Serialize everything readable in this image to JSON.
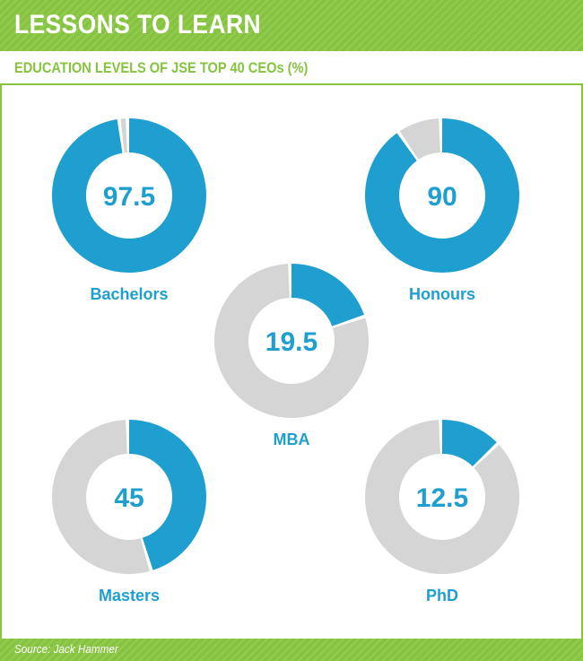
{
  "header": {
    "title": "LESSONS TO LEARN"
  },
  "subtitle": "EDUCATION LEVELS OF JSE TOP 40 CEOs (%)",
  "source": "Source: Jack Hammer",
  "colors": {
    "accent": "#86c440",
    "value": "#1f9fcf",
    "remainder": "#d5d5d5"
  },
  "chart_data": {
    "type": "pie",
    "title": "EDUCATION LEVELS OF JSE TOP 40 CEOs (%)",
    "unit": "%",
    "total": 100,
    "categories": [
      "Bachelors",
      "Honours",
      "MBA",
      "Masters",
      "PhD"
    ],
    "values": [
      97.5,
      90,
      19.5,
      45,
      12.5
    ],
    "value_labels": [
      "97.5",
      "90",
      "19.5",
      "45",
      "12.5"
    ]
  }
}
